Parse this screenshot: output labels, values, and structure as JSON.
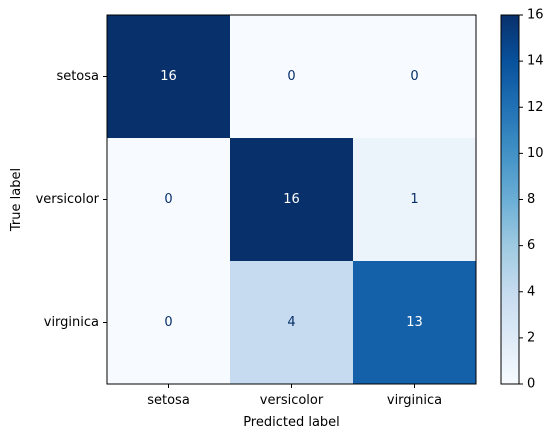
{
  "chart_data": {
    "type": "heatmap",
    "title": "",
    "xlabel": "Predicted label",
    "ylabel": "True label",
    "x_categories": [
      "setosa",
      "versicolor",
      "virginica"
    ],
    "y_categories": [
      "setosa",
      "versicolor",
      "virginica"
    ],
    "values": [
      [
        16,
        0,
        0
      ],
      [
        0,
        16,
        1
      ],
      [
        0,
        4,
        13
      ]
    ],
    "colormap": "Blues",
    "color_min": 0,
    "color_max": 16,
    "colorbar_ticks": [
      0,
      2,
      4,
      6,
      8,
      10,
      12,
      14,
      16
    ],
    "colors": {
      "low": "#f7fbff",
      "high": "#08306b",
      "text_on_dark": "#ffffff",
      "text_on_light": "#08306b"
    }
  }
}
